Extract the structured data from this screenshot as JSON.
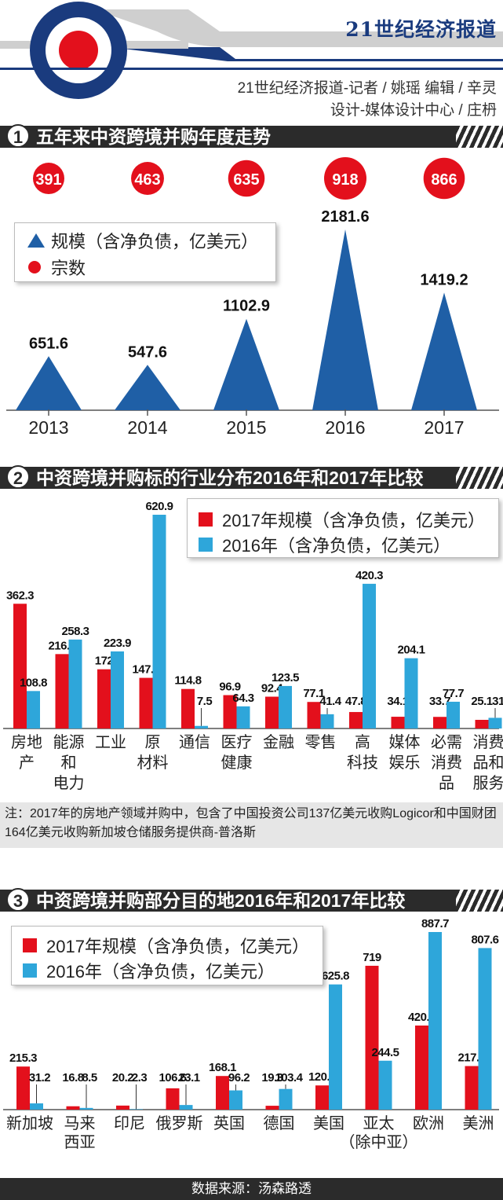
{
  "header": {
    "brand": "21世纪经济报道",
    "credit_line1": "21世纪经济报道-记者 / 姚瑶   编辑 / 辛灵",
    "credit_line2": "设计-媒体设计中心 / 庄枬"
  },
  "colors": {
    "blue": "#1f5fa6",
    "red": "#e3101c",
    "lightblue": "#2ea6da",
    "dark": "#2b2b2b",
    "navy": "#1a3b7e"
  },
  "sections": [
    {
      "num": "1",
      "title": "五年来中资跨境并购年度走势"
    },
    {
      "num": "2",
      "title": "中资跨境并购标的行业分布2016年和2017年比较"
    },
    {
      "num": "3",
      "title": "中资跨境并购部分目的地2016年和2017年比较"
    }
  ],
  "chart_data": [
    {
      "type": "area",
      "categories": [
        "2013",
        "2014",
        "2015",
        "2016",
        "2017"
      ],
      "series": [
        {
          "name": "规模（含净负债，亿美元）",
          "values": [
            651.6,
            547.6,
            1102.9,
            2181.6,
            1419.2
          ],
          "marker": "triangle"
        },
        {
          "name": "宗数",
          "values": [
            391,
            463,
            635,
            918,
            866
          ],
          "marker": "circle"
        }
      ],
      "legend_position": "top-left"
    },
    {
      "type": "bar",
      "categories": [
        "房地\n产",
        "能源\n和\n电力",
        "工业",
        "原\n材料",
        "通信",
        "医疗\n健康",
        "金融",
        "零售",
        "高\n科技",
        "媒体\n娱乐",
        "必需\n消费\n品",
        "消费\n品和\n服务"
      ],
      "series": [
        {
          "name": "2017年规模（含净负债，亿美元）",
          "values": [
            362.3,
            216.1,
            172.0,
            147.1,
            114.8,
            96.9,
            92.4,
            77.1,
            47.8,
            34.1,
            33.7,
            25.1
          ]
        },
        {
          "name": "2016年（含净负债，亿美元）",
          "values": [
            108.8,
            258.3,
            223.9,
            620.9,
            7.5,
            64.3,
            123.5,
            41.4,
            420.3,
            204.1,
            77.7,
            31.0
          ]
        }
      ],
      "legend_position": "top-right",
      "note": "注：2017年的房地产领域并购中，包含了中国投资公司137亿美元收购Logicor和中国财团164亿美元收购新加坡仓储服务提供商-普洛斯"
    },
    {
      "type": "bar",
      "categories": [
        "新加坡",
        "马来\n西亚",
        "印尼",
        "俄罗斯",
        "英国",
        "德国",
        "美国",
        "亚太\n（除中亚）",
        "欧洲",
        "美洲"
      ],
      "series": [
        {
          "name": "2017年规模（含净负债，亿美元）",
          "values": [
            215.3,
            16.8,
            20.2,
            106.6,
            168.1,
            19.3,
            120.9,
            719.0,
            420.3,
            217.8
          ]
        },
        {
          "name": "2016年（含净负债，亿美元）",
          "values": [
            31.2,
            8.5,
            2.3,
            23.1,
            96.2,
            103.4,
            625.8,
            244.5,
            887.7,
            807.6
          ]
        }
      ],
      "legend_position": "top-left"
    }
  ],
  "footer": {
    "source": "数据来源：汤森路透"
  }
}
